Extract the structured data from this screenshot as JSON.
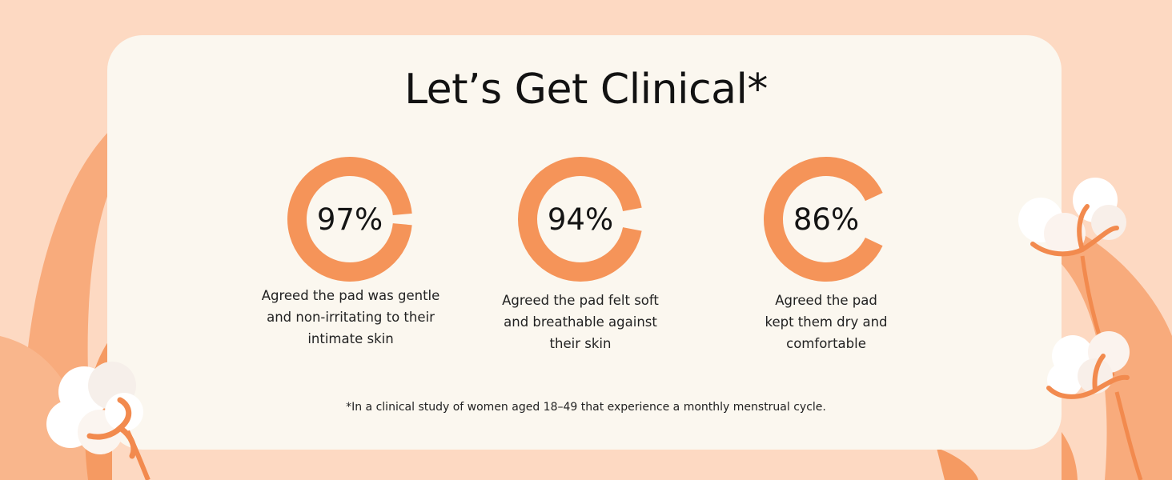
{
  "title": "Let’s Get Clinical*",
  "accent_color": "#f59459",
  "stats": [
    {
      "percent_label": "97%",
      "percent": 97,
      "desc_lines": [
        "Agreed the pad was gentle",
        "and non-irritating to their",
        "intimate skin"
      ]
    },
    {
      "percent_label": "94%",
      "percent": 94,
      "desc_lines": [
        "Agreed the pad felt soft",
        "and breathable against",
        "their skin"
      ]
    },
    {
      "percent_label": "86%",
      "percent": 86,
      "desc_lines": [
        "Agreed the pad",
        "kept them dry and",
        "comfortable"
      ]
    }
  ],
  "footnote": "*In a clinical study of women aged 18–49 that experience a monthly menstrual cycle."
}
